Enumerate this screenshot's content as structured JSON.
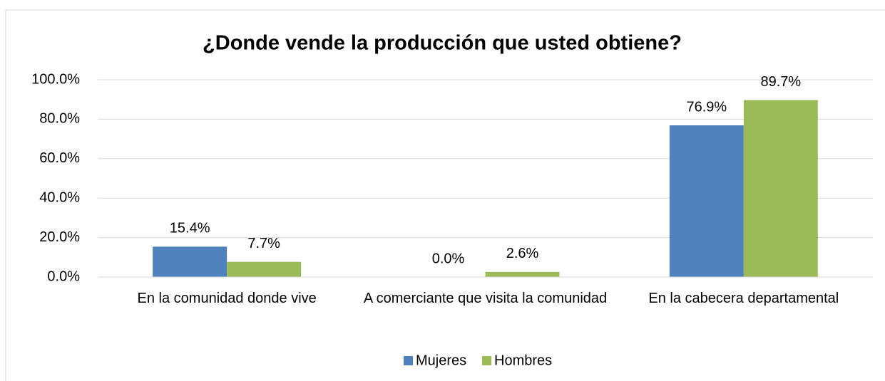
{
  "chart_data": {
    "type": "bar",
    "title": "¿Donde vende la producción que usted obtiene?",
    "categories": [
      "En la comunidad donde vive",
      "A comerciante que visita la comunidad",
      "En la cabecera departamental"
    ],
    "series": [
      {
        "name": "Mujeres",
        "color": "#4f81bd",
        "values": [
          15.4,
          0.0,
          76.9
        ],
        "value_labels": [
          "15.4%",
          "0.0%",
          "76.9%"
        ]
      },
      {
        "name": "Hombres",
        "color": "#9bbb59",
        "values": [
          7.7,
          2.6,
          89.7
        ],
        "value_labels": [
          "7.7%",
          "2.6%",
          "89.7%"
        ]
      }
    ],
    "ylim": [
      0,
      100
    ],
    "yticks": [
      {
        "value": 0,
        "label": "0.0%"
      },
      {
        "value": 20,
        "label": "20.0%"
      },
      {
        "value": 40,
        "label": "40.0%"
      },
      {
        "value": 60,
        "label": "60.0%"
      },
      {
        "value": 80,
        "label": "80.0%"
      },
      {
        "value": 100,
        "label": "100.0%"
      }
    ],
    "grid": true,
    "legend": "bottom"
  }
}
